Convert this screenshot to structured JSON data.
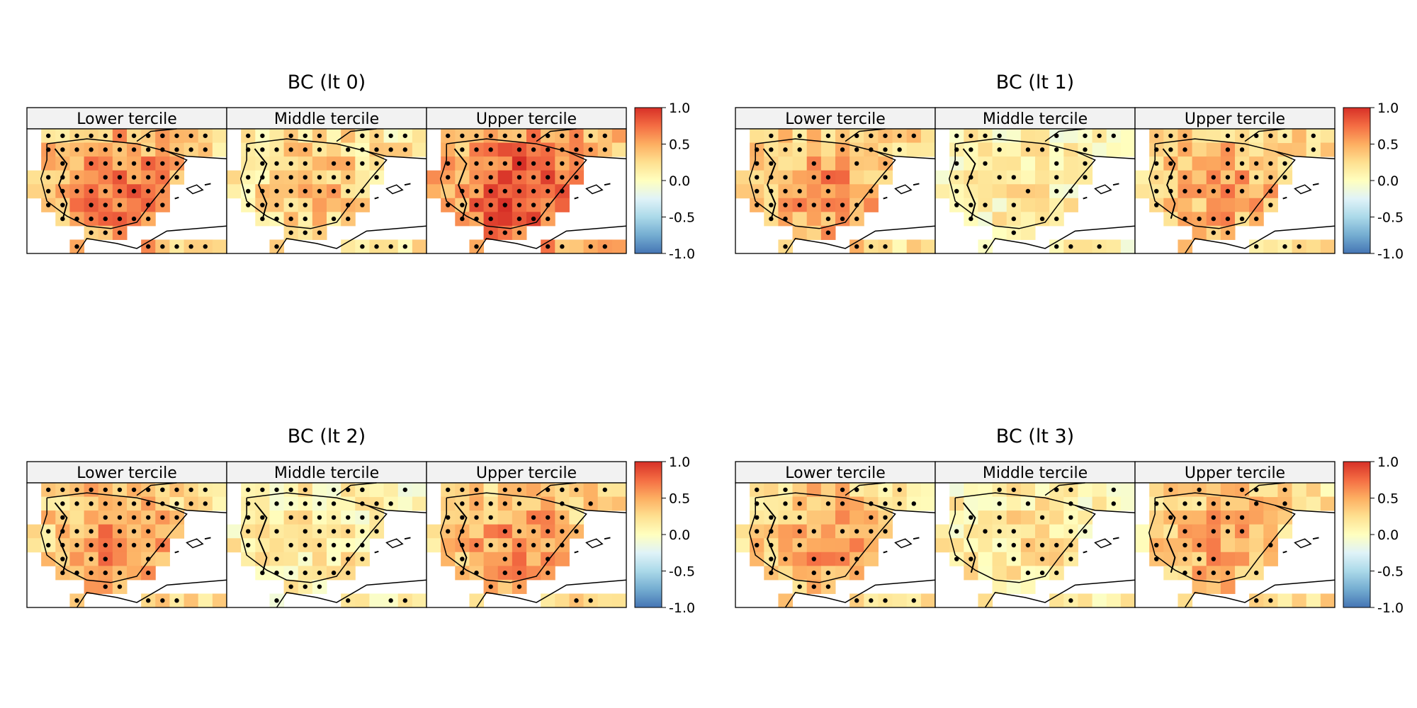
{
  "figure": {
    "colorbar": {
      "ticks": [
        "1.0",
        "0.5",
        "0.0",
        "-0.5",
        "-1.0"
      ],
      "stops": [
        "#d73027",
        "#f46d43",
        "#fdae61",
        "#fee090",
        "#ffffbf",
        "#e0f3f8",
        "#abd9e9",
        "#74add1",
        "#4575b4"
      ]
    },
    "colors": {
      "frame": "#000000",
      "strip": "#f2f2f2",
      "dot": "#000000"
    },
    "groups": [
      {
        "title": "BC (lt 0)",
        "panels": [
          {
            "label": "Lower tercile",
            "level": 0.62,
            "dots": 0.9
          },
          {
            "label": "Middle tercile",
            "level": 0.32,
            "dots": 0.85
          },
          {
            "label": "Upper tercile",
            "level": 0.78,
            "dots": 0.9
          }
        ]
      },
      {
        "title": "BC (lt 1)",
        "panels": [
          {
            "label": "Lower tercile",
            "level": 0.5,
            "dots": 0.75
          },
          {
            "label": "Middle tercile",
            "level": 0.12,
            "dots": 0.55
          },
          {
            "label": "Upper tercile",
            "level": 0.45,
            "dots": 0.6
          }
        ]
      },
      {
        "title": "BC (lt 2)",
        "panels": [
          {
            "label": "Lower tercile",
            "level": 0.52,
            "dots": 0.8
          },
          {
            "label": "Middle tercile",
            "level": 0.15,
            "dots": 0.75
          },
          {
            "label": "Upper tercile",
            "level": 0.5,
            "dots": 0.55
          }
        ]
      },
      {
        "title": "BC (lt 3)",
        "panels": [
          {
            "label": "Lower tercile",
            "level": 0.48,
            "dots": 0.6
          },
          {
            "label": "Middle tercile",
            "level": 0.18,
            "dots": 0.4
          },
          {
            "label": "Upper tercile",
            "level": 0.45,
            "dots": 0.45
          }
        ]
      }
    ]
  }
}
